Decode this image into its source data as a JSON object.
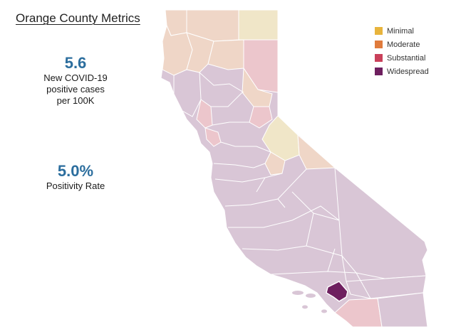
{
  "title": "Orange County Metrics",
  "metrics": {
    "cases": {
      "value": "5.6",
      "label_line1": "New COVID-19",
      "label_line2": "positive cases",
      "label_line3": "per 100K"
    },
    "positivity": {
      "value": "5.0%",
      "label": "Positivity Rate"
    }
  },
  "legend": {
    "items": [
      {
        "label": "Minimal",
        "color": "#e8b43c"
      },
      {
        "label": "Moderate",
        "color": "#e07b3c"
      },
      {
        "label": "Substantial",
        "color": "#c9405a"
      },
      {
        "label": "Widespread",
        "color": "#6e1f5f"
      }
    ]
  },
  "map_colors": {
    "widespread_light": "#d9c6d6",
    "moderate_light": "#efd6c7",
    "minimal_light": "#f0e6c8",
    "substantial_light": "#ecc6cc",
    "highlight": "#6e1f5f",
    "border": "#ffffff"
  }
}
